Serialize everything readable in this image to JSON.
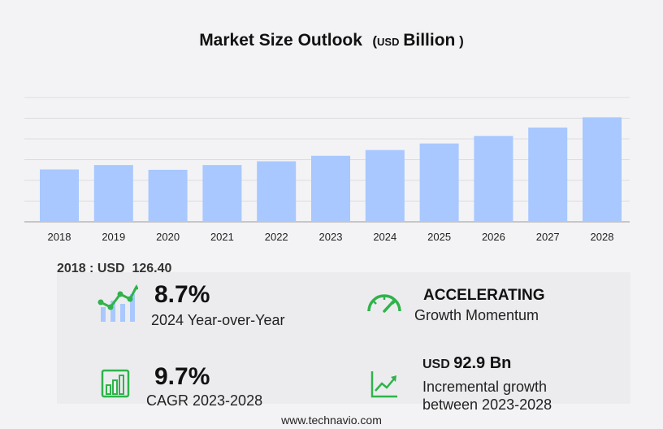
{
  "title": {
    "main": "Market Size Outlook",
    "open": "(",
    "unit": "USD",
    "unit_word": "Billion",
    "close": ")"
  },
  "chart_data": {
    "type": "bar",
    "categories": [
      "2018",
      "2019",
      "2020",
      "2021",
      "2022",
      "2023",
      "2024",
      "2025",
      "2026",
      "2027",
      "2028"
    ],
    "values": [
      126.4,
      137.0,
      125.5,
      137.0,
      146.0,
      159.3,
      173.2,
      189.0,
      207.2,
      227.5,
      252.2
    ],
    "bar_color": "#a8c8ff",
    "grid": true,
    "ylim": [
      0,
      300
    ]
  },
  "base_value": {
    "label": "2018 : USD",
    "value": "126.40"
  },
  "stats": {
    "yoy": {
      "value": "8.7%",
      "label": "2024 Year-over-Year",
      "icon": "growth-chart-icon"
    },
    "momentum": {
      "value": "ACCELERATING",
      "label": "Growth Momentum",
      "icon": "speedometer-icon"
    },
    "cagr": {
      "value": "9.7%",
      "label": "CAGR 2023-2028",
      "icon": "bar-chart-icon"
    },
    "incremental": {
      "unit": "USD",
      "value": "92.9 Bn",
      "label1": "Incremental growth",
      "label2": "between 2023-2028",
      "icon": "trend-up-icon"
    }
  },
  "colors": {
    "accent_green": "#2fb34a",
    "bar": "#a8c8ff",
    "icon_blue": "#a8c8ff"
  },
  "footer": "www.technavio.com"
}
